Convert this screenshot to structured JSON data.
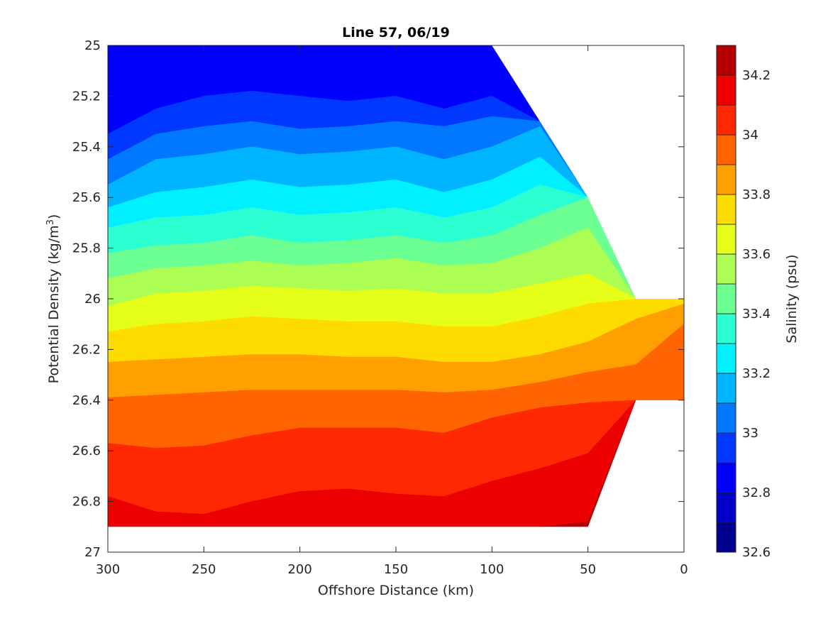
{
  "chart_data": {
    "type": "filled_contour",
    "title": "Line 57, 06/19",
    "xlabel": "Offshore Distance (km)",
    "ylabel_main": "Potential Density (kg/m",
    "ylabel_sup": "3",
    "ylabel_close": ")",
    "colorbar_label": "Salinity (psu)",
    "x_axis": {
      "range": [
        300,
        0
      ],
      "reversed": true,
      "ticks": [
        300,
        250,
        200,
        150,
        100,
        50,
        0
      ],
      "tick_labels": [
        "300",
        "250",
        "200",
        "150",
        "100",
        "50",
        "0"
      ]
    },
    "y_axis": {
      "range": [
        25,
        27
      ],
      "reversed": true,
      "ticks": [
        25,
        25.2,
        25.4,
        25.6,
        25.8,
        26,
        26.2,
        26.4,
        26.6,
        26.8,
        27
      ],
      "tick_labels": [
        "25",
        "25.2",
        "25.4",
        "25.6",
        "25.8",
        "26",
        "26.2",
        "26.4",
        "26.6",
        "26.8",
        "27"
      ]
    },
    "colorbar": {
      "range": [
        32.6,
        34.3
      ],
      "ticks": [
        32.6,
        32.8,
        33.0,
        33.2,
        33.4,
        33.6,
        33.8,
        34.0,
        34.2
      ],
      "tick_labels": [
        "32.6",
        "32.8",
        "33",
        "33.2",
        "33.4",
        "33.6",
        "33.8",
        "34",
        "34.2"
      ],
      "levels": [
        32.6,
        32.7,
        32.8,
        32.9,
        33.0,
        33.1,
        33.2,
        33.3,
        33.4,
        33.5,
        33.6,
        33.7,
        33.8,
        33.9,
        34.0,
        34.1,
        34.2,
        34.3
      ],
      "colors": [
        "#00008f",
        "#0000c8",
        "#0000ff",
        "#0038ff",
        "#0078ff",
        "#00b4ff",
        "#00f0ff",
        "#2cffd2",
        "#6cff92",
        "#acff52",
        "#e6ff18",
        "#ffdc00",
        "#ffa000",
        "#ff6400",
        "#ff2800",
        "#ec0000",
        "#b40000"
      ]
    },
    "sample_x_km": [
      300,
      275,
      250,
      225,
      200,
      175,
      150,
      125,
      100,
      75,
      50,
      25,
      0
    ],
    "data_extent": {
      "x": [
        300,
        275,
        250,
        225,
        200,
        175,
        150,
        125,
        100,
        75,
        50,
        25,
        0
      ],
      "y_top": [
        25.0,
        25.0,
        25.0,
        25.0,
        25.0,
        25.0,
        25.0,
        25.0,
        25.0,
        25.3,
        25.6,
        26.0,
        26.0
      ],
      "y_bottom": [
        26.9,
        26.9,
        26.9,
        26.9,
        26.9,
        26.9,
        26.9,
        26.9,
        26.9,
        26.9,
        26.9,
        26.4,
        26.4
      ]
    },
    "isolines": [
      {
        "level": 32.9,
        "y": [
          25.35,
          25.25,
          25.2,
          25.18,
          25.2,
          25.22,
          25.2,
          25.25,
          25.2,
          25.2,
          25.2,
          25.2,
          25.2
        ]
      },
      {
        "level": 33.0,
        "y": [
          25.45,
          25.35,
          25.32,
          25.3,
          25.33,
          25.32,
          25.3,
          25.32,
          25.28,
          25.25,
          25.2,
          25.2,
          25.2
        ]
      },
      {
        "level": 33.1,
        "y": [
          25.55,
          25.45,
          25.43,
          25.4,
          25.43,
          25.42,
          25.4,
          25.45,
          25.4,
          25.32,
          25.25,
          25.2,
          25.2
        ]
      },
      {
        "level": 33.2,
        "y": [
          25.64,
          25.58,
          25.56,
          25.53,
          25.56,
          25.55,
          25.53,
          25.58,
          25.53,
          25.44,
          25.32,
          25.25,
          25.25
        ]
      },
      {
        "level": 33.3,
        "y": [
          25.72,
          25.68,
          25.67,
          25.64,
          25.67,
          25.66,
          25.64,
          25.68,
          25.64,
          25.55,
          25.42,
          25.3,
          25.3
        ]
      },
      {
        "level": 33.4,
        "y": [
          25.82,
          25.79,
          25.78,
          25.75,
          25.78,
          25.77,
          25.75,
          25.78,
          25.75,
          25.67,
          25.55,
          25.35,
          25.35
        ]
      },
      {
        "level": 33.5,
        "y": [
          25.92,
          25.88,
          25.87,
          25.85,
          25.87,
          25.86,
          25.84,
          25.87,
          25.86,
          25.8,
          25.72,
          25.45,
          25.45
        ]
      },
      {
        "level": 33.6,
        "y": [
          26.03,
          25.98,
          25.97,
          25.95,
          25.96,
          25.97,
          25.96,
          25.98,
          25.98,
          25.94,
          25.9,
          25.75,
          25.75
        ]
      },
      {
        "level": 33.7,
        "y": [
          26.13,
          26.1,
          26.09,
          26.07,
          26.08,
          26.09,
          26.09,
          26.11,
          26.11,
          26.07,
          26.02,
          26.0,
          26.0
        ]
      },
      {
        "level": 33.8,
        "y": [
          26.25,
          26.24,
          26.23,
          26.22,
          26.22,
          26.23,
          26.23,
          26.25,
          26.25,
          26.22,
          26.17,
          26.08,
          26.02
        ]
      },
      {
        "level": 33.9,
        "y": [
          26.39,
          26.38,
          26.37,
          26.36,
          26.36,
          26.36,
          26.36,
          26.37,
          26.36,
          26.33,
          26.29,
          26.26,
          26.1
        ]
      },
      {
        "level": 34.0,
        "y": [
          26.57,
          26.59,
          26.58,
          26.54,
          26.51,
          26.51,
          26.51,
          26.53,
          26.47,
          26.43,
          26.41,
          26.45,
          26.4
        ]
      },
      {
        "level": 34.1,
        "y": [
          26.78,
          26.84,
          26.85,
          26.8,
          26.76,
          26.75,
          26.77,
          26.78,
          26.72,
          26.67,
          26.61,
          26.55,
          26.55
        ]
      },
      {
        "level": 34.2,
        "y": [
          26.95,
          26.95,
          26.95,
          26.95,
          26.95,
          26.95,
          26.95,
          26.95,
          26.95,
          26.93,
          26.88,
          26.85,
          26.85
        ]
      }
    ],
    "grid": false
  }
}
